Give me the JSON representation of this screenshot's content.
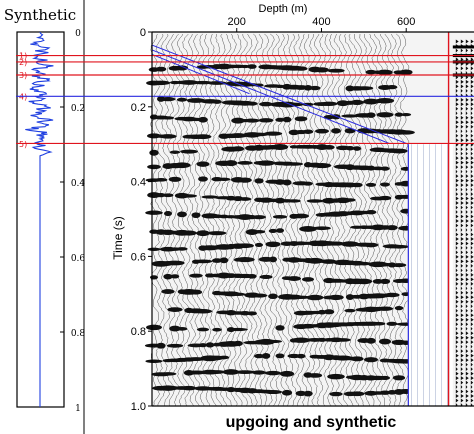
{
  "chart_data": [
    {
      "type": "line",
      "title": "Synthetic",
      "orientation": "vertical",
      "ylim": [
        0,
        1.0
      ],
      "yticks": [
        0,
        0.2,
        0.4,
        0.6,
        0.8,
        1
      ],
      "ytick_labels": [
        "0",
        "0.2",
        "0.4",
        "0.6",
        "0.8",
        "1"
      ],
      "series_color": "#1f3fe0",
      "horizon_color": "#e0141e",
      "horizons": [
        {
          "label": "1)",
          "time": 0.063
        },
        {
          "label": "2)",
          "time": 0.08
        },
        {
          "label": "3)",
          "time": 0.115
        },
        {
          "label": "4)",
          "time": 0.172
        },
        {
          "label": "5)",
          "time": 0.298
        }
      ]
    },
    {
      "type": "heatmap",
      "caption": "upgoing and synthetic",
      "xlabel": "Depth (m)",
      "ylabel": "Time (s)",
      "xlim": [
        0,
        760
      ],
      "ylim": [
        0,
        1.0
      ],
      "xticks": [
        200,
        400,
        600
      ],
      "xtick_labels": [
        "200",
        "400",
        "600"
      ],
      "yticks": [
        0,
        0.2,
        0.4,
        0.6,
        0.8,
        1.0
      ],
      "ytick_labels": [
        "0",
        "0.2",
        "0.4",
        "0.6",
        "0.8",
        "1.0"
      ],
      "data_extent_depth": 605,
      "synthetic_panel_depth_range": [
        710,
        760
      ],
      "first_arrival_lines": [
        {
          "color": "#2a2ae0",
          "points": [
            [
              0,
              0.035
            ],
            [
              605,
              0.3
            ]
          ]
        },
        {
          "color": "#2a2ae0",
          "points": [
            [
              0,
              0.048
            ],
            [
              560,
              0.298
            ]
          ]
        },
        {
          "color": "#2a2ae0",
          "points": [
            [
              0,
              0.06
            ],
            [
              230,
              0.165
            ]
          ]
        }
      ],
      "overlay_lines": [
        {
          "color": "#e0141e",
          "orientation": "vertical",
          "depth": 700
        },
        {
          "color": "#e0141e",
          "orientation": "horizontal",
          "time": 0.063
        },
        {
          "color": "#e0141e",
          "orientation": "horizontal",
          "time": 0.08
        },
        {
          "color": "#e0141e",
          "orientation": "horizontal",
          "time": 0.115
        },
        {
          "color": "#2a2ae0",
          "orientation": "horizontal",
          "time": 0.172
        },
        {
          "color": "#e0141e",
          "orientation": "horizontal",
          "time": 0.298
        }
      ]
    }
  ]
}
